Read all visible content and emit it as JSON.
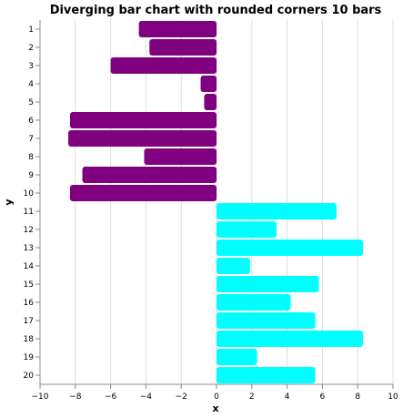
{
  "chart_data": {
    "type": "bar",
    "orientation": "horizontal",
    "title": "Diverging bar chart with rounded corners 10 bars",
    "xlabel": "x",
    "ylabel": "y",
    "xlim": [
      -10,
      10
    ],
    "x_ticks": [
      "−10",
      "−8",
      "−6",
      "−4",
      "−2",
      "0",
      "2",
      "4",
      "6",
      "8",
      "10"
    ],
    "grid": true,
    "categories": [
      "1",
      "2",
      "3",
      "4",
      "5",
      "6",
      "7",
      "8",
      "9",
      "10",
      "11",
      "12",
      "13",
      "14",
      "15",
      "16",
      "17",
      "18",
      "19",
      "20"
    ],
    "values": [
      -4.4,
      -3.8,
      -6.0,
      -0.9,
      -0.7,
      -8.3,
      -8.4,
      -4.1,
      -7.6,
      -8.3,
      6.8,
      3.4,
      8.3,
      1.9,
      5.8,
      4.2,
      5.6,
      8.3,
      2.3,
      5.6
    ],
    "colors": {
      "negative": "#800080",
      "positive": "#00ffff"
    }
  }
}
